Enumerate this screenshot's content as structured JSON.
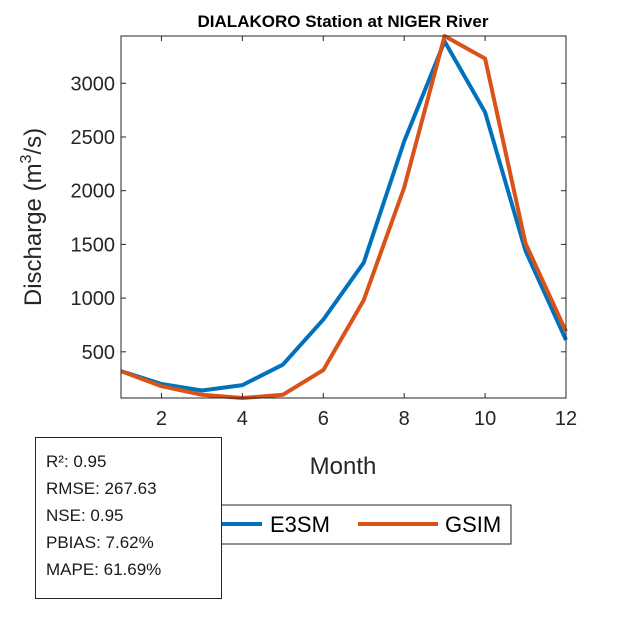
{
  "chart_data": {
    "type": "line",
    "title": "DIALAKORO  Station at  NIGER  River",
    "xlabel": "Month",
    "ylabel": "Discharge (m³/s)",
    "ylabel_parts": {
      "main": "Discharge (m",
      "sup": "3",
      "end": "/s)"
    },
    "xlim": [
      1,
      12
    ],
    "ylim": [
      70,
      3440
    ],
    "xticks": [
      2,
      4,
      6,
      8,
      10,
      12
    ],
    "yticks": [
      500,
      1000,
      1500,
      2000,
      2500,
      3000
    ],
    "x": [
      1,
      2,
      3,
      4,
      5,
      6,
      7,
      8,
      9,
      10,
      11,
      12
    ],
    "series": [
      {
        "name": "E3SM",
        "color": "#0072BD",
        "values": [
          320,
          200,
          140,
          190,
          380,
          800,
          1330,
          2460,
          3390,
          2730,
          1440,
          610
        ]
      },
      {
        "name": "GSIM",
        "color": "#D95319",
        "values": [
          320,
          180,
          100,
          70,
          100,
          330,
          980,
          2030,
          3440,
          3230,
          1510,
          690
        ]
      }
    ]
  },
  "stats": {
    "r2": "R²: 0.95",
    "rmse": "RMSE: 267.63",
    "nse": "NSE: 0.95",
    "pbias": "PBIAS: 7.62%",
    "mape": "MAPE: 61.69%"
  }
}
